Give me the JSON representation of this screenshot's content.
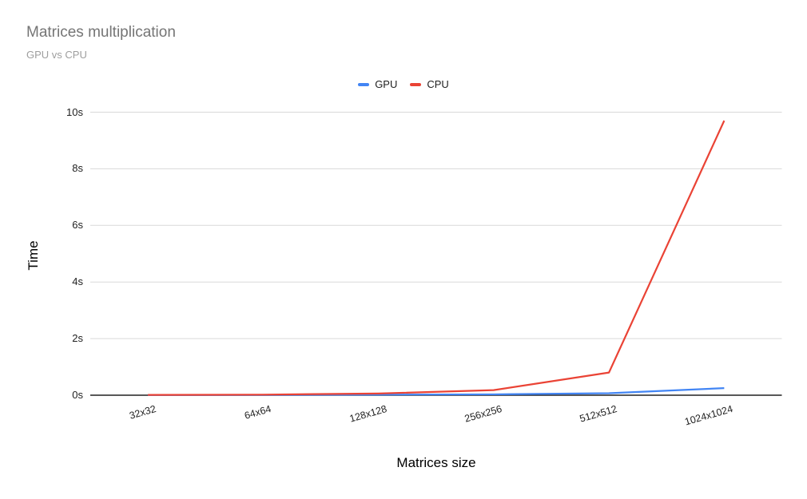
{
  "chart_data": {
    "type": "line",
    "title": "Matrices multiplication",
    "subtitle": "GPU vs CPU",
    "xlabel": "Matrices size",
    "ylabel": "Time",
    "categories": [
      "32x32",
      "64x64",
      "128x128",
      "256x256",
      "512x512",
      "1024x1024"
    ],
    "series": [
      {
        "name": "GPU",
        "color": "#4285f4",
        "values": [
          0.005,
          0.01,
          0.02,
          0.03,
          0.07,
          0.25
        ]
      },
      {
        "name": "CPU",
        "color": "#ea4335",
        "values": [
          0.01,
          0.02,
          0.06,
          0.18,
          0.8,
          9.7
        ]
      }
    ],
    "ylim": [
      0,
      10
    ],
    "ytick_values": [
      0,
      2,
      4,
      6,
      8,
      10
    ],
    "ytick_labels": [
      "0s",
      "2s",
      "4s",
      "6s",
      "8s",
      "10s"
    ],
    "grid": true,
    "legend_position": "top",
    "gridline_color": "#d9d9d9",
    "axis_line_color": "#212121",
    "text_color": "#212121"
  }
}
